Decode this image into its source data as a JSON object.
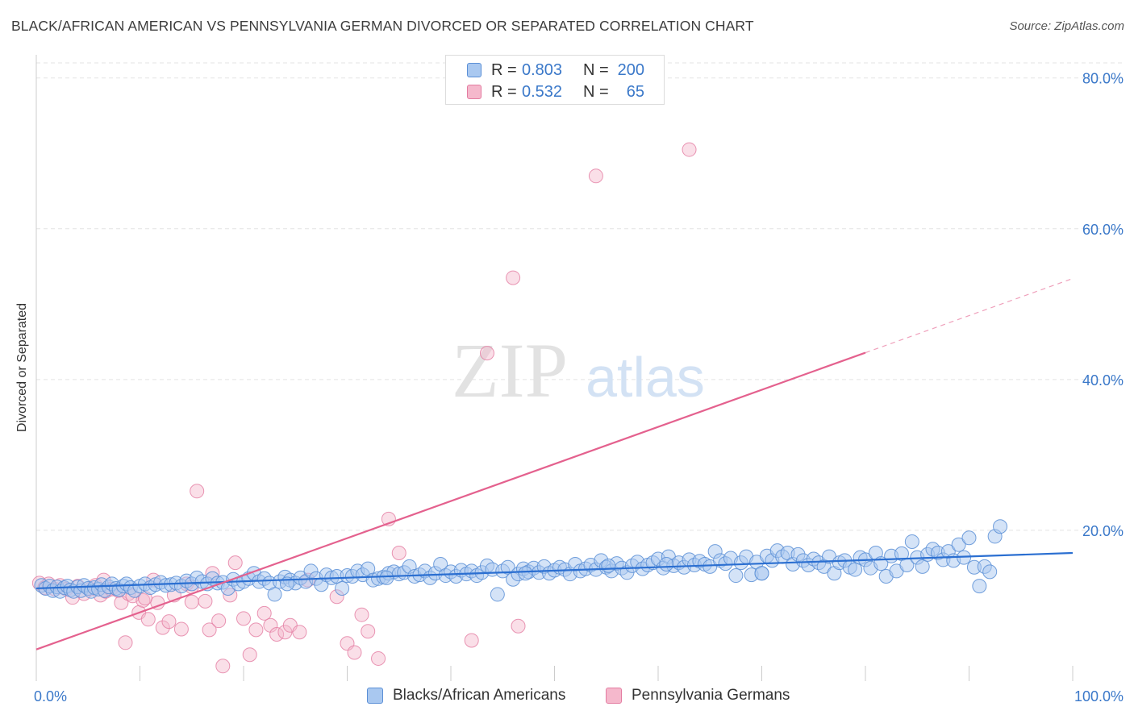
{
  "title": "BLACK/AFRICAN AMERICAN VS PENNSYLVANIA GERMAN DIVORCED OR SEPARATED CORRELATION CHART",
  "source": "Source: ZipAtlas.com",
  "watermark": {
    "zip": "ZIP",
    "atlas": "atlas"
  },
  "stats": [
    {
      "r_label": "R =",
      "r_value": "0.803",
      "n_label": "N =",
      "n_value": "200",
      "color": "#a9c8f0"
    },
    {
      "r_label": "R =",
      "r_value": "0.532",
      "n_label": "N =",
      "n_value": "65",
      "color": "#f5b8cc"
    }
  ],
  "legend": {
    "blue_label": "Blacks/African Americans",
    "pink_label": "Pennsylvania Germans"
  },
  "colors": {
    "blue_fill": "#a9c8f0",
    "blue_stroke": "#5b8fd6",
    "blue_line": "#2b6fd1",
    "pink_fill": "#f5b8cc",
    "pink_stroke": "#e37ca1",
    "pink_line": "#e4618e",
    "tick_text": "#3a78c9",
    "grid": "#e3e3e3"
  },
  "chart_data": {
    "type": "scatter",
    "title": "BLACK/AFRICAN AMERICAN VS PENNSYLVANIA GERMAN DIVORCED OR SEPARATED CORRELATION CHART",
    "xlabel": "",
    "ylabel": "Divorced or Separated",
    "xlim": [
      0,
      100
    ],
    "ylim": [
      0,
      82
    ],
    "x_tick_labels": [
      {
        "value": 0,
        "label": "0.0%"
      },
      {
        "value": 100,
        "label": "100.0%"
      }
    ],
    "y_tick_labels": [
      {
        "value": 20,
        "label": "20.0%"
      },
      {
        "value": 40,
        "label": "40.0%"
      },
      {
        "value": 60,
        "label": "60.0%"
      },
      {
        "value": 80,
        "label": "80.0%"
      }
    ],
    "grid": true,
    "legend_position": "bottom-center",
    "series": [
      {
        "name": "Blacks/African Americans",
        "color": "#a9c8f0",
        "trend": {
          "x": [
            0,
            100
          ],
          "y": [
            12.3,
            17.0
          ]
        },
        "points": [
          [
            0.5,
            12.7
          ],
          [
            0.9,
            12.3
          ],
          [
            1.3,
            12.6
          ],
          [
            1.6,
            12.0
          ],
          [
            2.0,
            12.5
          ],
          [
            2.3,
            11.9
          ],
          [
            2.7,
            12.4
          ],
          [
            3.0,
            12.6
          ],
          [
            3.3,
            12.1
          ],
          [
            3.6,
            11.9
          ],
          [
            4.0,
            12.5
          ],
          [
            4.3,
            12.0
          ],
          [
            4.6,
            12.7
          ],
          [
            5.0,
            12.3
          ],
          [
            5.3,
            11.9
          ],
          [
            5.6,
            12.4
          ],
          [
            6.0,
            12.2
          ],
          [
            6.3,
            12.8
          ],
          [
            6.6,
            12.0
          ],
          [
            7.0,
            12.5
          ],
          [
            7.3,
            12.9
          ],
          [
            7.7,
            12.3
          ],
          [
            8.0,
            12.1
          ],
          [
            8.4,
            12.6
          ],
          [
            8.7,
            12.9
          ],
          [
            9.1,
            12.4
          ],
          [
            9.5,
            12.0
          ],
          [
            10.0,
            12.6
          ],
          [
            10.5,
            12.9
          ],
          [
            11.0,
            12.4
          ],
          [
            11.5,
            12.8
          ],
          [
            12.0,
            13.1
          ],
          [
            12.5,
            12.7
          ],
          [
            13.0,
            12.8
          ],
          [
            13.5,
            13.0
          ],
          [
            14.0,
            12.6
          ],
          [
            14.5,
            13.3
          ],
          [
            15.0,
            12.9
          ],
          [
            15.5,
            13.7
          ],
          [
            16.0,
            13.2
          ],
          [
            16.5,
            12.9
          ],
          [
            17.0,
            13.6
          ],
          [
            17.5,
            13.0
          ],
          [
            18.0,
            13.1
          ],
          [
            18.5,
            12.3
          ],
          [
            19.0,
            13.5
          ],
          [
            19.5,
            12.9
          ],
          [
            20.0,
            13.2
          ],
          [
            20.5,
            13.6
          ],
          [
            21.0,
            14.3
          ],
          [
            21.5,
            13.2
          ],
          [
            22.0,
            13.6
          ],
          [
            22.5,
            13.0
          ],
          [
            23.0,
            11.5
          ],
          [
            23.5,
            13.2
          ],
          [
            24.0,
            13.8
          ],
          [
            24.5,
            13.4
          ],
          [
            25.0,
            13.0
          ],
          [
            25.5,
            13.7
          ],
          [
            26.0,
            13.2
          ],
          [
            26.5,
            14.6
          ],
          [
            27.0,
            13.6
          ],
          [
            27.5,
            12.8
          ],
          [
            28.0,
            14.1
          ],
          [
            28.5,
            13.7
          ],
          [
            29.0,
            13.9
          ],
          [
            29.5,
            12.3
          ],
          [
            30.0,
            14.0
          ],
          [
            30.5,
            13.9
          ],
          [
            31.0,
            14.6
          ],
          [
            31.5,
            14.1
          ],
          [
            32.0,
            14.9
          ],
          [
            32.5,
            13.4
          ],
          [
            33.0,
            13.6
          ],
          [
            33.5,
            13.8
          ],
          [
            34.0,
            14.3
          ],
          [
            34.5,
            14.5
          ],
          [
            35.0,
            14.2
          ],
          [
            35.5,
            14.4
          ],
          [
            36.0,
            15.2
          ],
          [
            36.5,
            13.9
          ],
          [
            37.0,
            14.1
          ],
          [
            37.5,
            14.6
          ],
          [
            38.0,
            13.7
          ],
          [
            38.5,
            14.3
          ],
          [
            39.0,
            15.5
          ],
          [
            39.5,
            14.0
          ],
          [
            40.0,
            14.5
          ],
          [
            40.5,
            13.9
          ],
          [
            41.0,
            14.7
          ],
          [
            41.5,
            14.2
          ],
          [
            42.0,
            14.6
          ],
          [
            42.5,
            14.0
          ],
          [
            43.0,
            14.4
          ],
          [
            43.5,
            15.3
          ],
          [
            44.0,
            14.8
          ],
          [
            44.5,
            11.5
          ],
          [
            45.0,
            14.6
          ],
          [
            45.5,
            15.1
          ],
          [
            46.0,
            13.5
          ],
          [
            46.5,
            14.2
          ],
          [
            47.0,
            14.9
          ],
          [
            47.5,
            14.5
          ],
          [
            48.0,
            15.0
          ],
          [
            48.5,
            14.4
          ],
          [
            49.0,
            15.2
          ],
          [
            49.5,
            14.3
          ],
          [
            50.0,
            14.7
          ],
          [
            50.5,
            15.1
          ],
          [
            51.0,
            14.8
          ],
          [
            51.5,
            14.2
          ],
          [
            52.0,
            15.5
          ],
          [
            52.5,
            14.6
          ],
          [
            53.0,
            14.9
          ],
          [
            53.5,
            15.4
          ],
          [
            54.0,
            14.8
          ],
          [
            54.5,
            16.0
          ],
          [
            55.0,
            15.1
          ],
          [
            55.5,
            14.6
          ],
          [
            56.0,
            15.6
          ],
          [
            56.5,
            15.0
          ],
          [
            57.0,
            14.4
          ],
          [
            57.5,
            15.3
          ],
          [
            58.0,
            15.8
          ],
          [
            58.5,
            14.9
          ],
          [
            59.0,
            15.4
          ],
          [
            59.5,
            15.7
          ],
          [
            60.0,
            16.2
          ],
          [
            60.5,
            15.0
          ],
          [
            61.0,
            16.5
          ],
          [
            61.5,
            15.3
          ],
          [
            62.0,
            15.7
          ],
          [
            62.5,
            15.1
          ],
          [
            63.0,
            16.1
          ],
          [
            63.5,
            15.4
          ],
          [
            64.0,
            15.9
          ],
          [
            64.5,
            15.5
          ],
          [
            65.0,
            15.2
          ],
          [
            65.5,
            17.2
          ],
          [
            66.0,
            16.0
          ],
          [
            66.5,
            15.6
          ],
          [
            67.0,
            16.3
          ],
          [
            67.5,
            14.0
          ],
          [
            68.0,
            15.7
          ],
          [
            68.5,
            16.5
          ],
          [
            69.0,
            14.1
          ],
          [
            69.5,
            15.8
          ],
          [
            70.0,
            14.3
          ],
          [
            70.5,
            16.6
          ],
          [
            71.0,
            16.0
          ],
          [
            71.5,
            17.3
          ],
          [
            72.0,
            16.5
          ],
          [
            72.5,
            17.0
          ],
          [
            73.0,
            15.5
          ],
          [
            73.5,
            16.8
          ],
          [
            74.0,
            16.0
          ],
          [
            74.5,
            15.4
          ],
          [
            75.0,
            16.2
          ],
          [
            75.5,
            15.7
          ],
          [
            76.0,
            15.2
          ],
          [
            76.5,
            16.5
          ],
          [
            77.0,
            14.3
          ],
          [
            77.5,
            15.7
          ],
          [
            78.0,
            16.0
          ],
          [
            78.5,
            15.1
          ],
          [
            79.0,
            14.8
          ],
          [
            79.5,
            16.4
          ],
          [
            80.0,
            16.1
          ],
          [
            80.5,
            15.0
          ],
          [
            81.0,
            17.0
          ],
          [
            81.5,
            15.6
          ],
          [
            82.0,
            13.9
          ],
          [
            82.5,
            16.6
          ],
          [
            83.0,
            14.6
          ],
          [
            83.5,
            16.9
          ],
          [
            84.0,
            15.4
          ],
          [
            84.5,
            18.5
          ],
          [
            85.0,
            16.4
          ],
          [
            85.5,
            15.2
          ],
          [
            86.0,
            16.8
          ],
          [
            86.5,
            17.5
          ],
          [
            87.0,
            17.0
          ],
          [
            87.5,
            16.1
          ],
          [
            88.0,
            17.2
          ],
          [
            88.5,
            16.0
          ],
          [
            89.0,
            18.1
          ],
          [
            89.5,
            16.4
          ],
          [
            90.0,
            19.0
          ],
          [
            90.5,
            15.1
          ],
          [
            91.0,
            12.6
          ],
          [
            91.5,
            15.2
          ],
          [
            92.0,
            14.5
          ],
          [
            92.5,
            19.2
          ],
          [
            93.0,
            20.5
          ],
          [
            70.0,
            14.3
          ],
          [
            60.8,
            15.5
          ],
          [
            24.2,
            12.9
          ],
          [
            33.8,
            13.7
          ],
          [
            47.2,
            14.3
          ],
          [
            55.2,
            15.3
          ]
        ]
      },
      {
        "name": "Pennsylvania Germans",
        "color": "#f5b8cc",
        "trend": {
          "x": [
            0,
            100
          ],
          "y": [
            4.2,
            53.4
          ],
          "solid_until_x": 80
        },
        "points": [
          [
            0.3,
            13.0
          ],
          [
            0.8,
            12.4
          ],
          [
            1.2,
            12.9
          ],
          [
            1.8,
            12.2
          ],
          [
            2.3,
            12.7
          ],
          [
            2.9,
            12.2
          ],
          [
            3.5,
            11.1
          ],
          [
            4.0,
            12.6
          ],
          [
            4.6,
            11.6
          ],
          [
            5.2,
            12.2
          ],
          [
            5.7,
            12.7
          ],
          [
            6.2,
            11.4
          ],
          [
            6.7,
            11.9
          ],
          [
            6.5,
            13.4
          ],
          [
            7.2,
            12.2
          ],
          [
            7.9,
            12.0
          ],
          [
            8.2,
            10.4
          ],
          [
            8.6,
            5.1
          ],
          [
            8.9,
            11.6
          ],
          [
            9.3,
            11.3
          ],
          [
            9.9,
            9.1
          ],
          [
            10.3,
            10.7
          ],
          [
            10.8,
            8.2
          ],
          [
            11.3,
            13.4
          ],
          [
            11.7,
            10.4
          ],
          [
            12.2,
            7.1
          ],
          [
            12.8,
            7.9
          ],
          [
            13.3,
            11.4
          ],
          [
            14.0,
            6.9
          ],
          [
            14.5,
            12.9
          ],
          [
            15.0,
            10.5
          ],
          [
            15.5,
            25.2
          ],
          [
            16.3,
            10.6
          ],
          [
            16.7,
            6.8
          ],
          [
            17.0,
            14.3
          ],
          [
            17.6,
            8.0
          ],
          [
            18.0,
            2.0
          ],
          [
            18.7,
            11.4
          ],
          [
            19.2,
            15.7
          ],
          [
            20.0,
            8.3
          ],
          [
            20.6,
            3.5
          ],
          [
            21.2,
            6.8
          ],
          [
            22.0,
            9.0
          ],
          [
            22.6,
            7.4
          ],
          [
            23.2,
            6.2
          ],
          [
            24.0,
            6.5
          ],
          [
            24.5,
            7.4
          ],
          [
            25.4,
            6.5
          ],
          [
            26.2,
            13.4
          ],
          [
            29.0,
            11.2
          ],
          [
            30.0,
            5.0
          ],
          [
            30.7,
            3.8
          ],
          [
            31.4,
            8.8
          ],
          [
            32.0,
            6.6
          ],
          [
            33.0,
            3.0
          ],
          [
            34.0,
            21.5
          ],
          [
            35.0,
            17.0
          ],
          [
            42.0,
            5.4
          ],
          [
            43.5,
            43.5
          ],
          [
            46.5,
            7.3
          ],
          [
            46.0,
            53.5
          ],
          [
            54.0,
            67.0
          ],
          [
            63.0,
            70.5
          ],
          [
            15.0,
            12.5
          ],
          [
            10.5,
            11.0
          ]
        ]
      }
    ]
  }
}
